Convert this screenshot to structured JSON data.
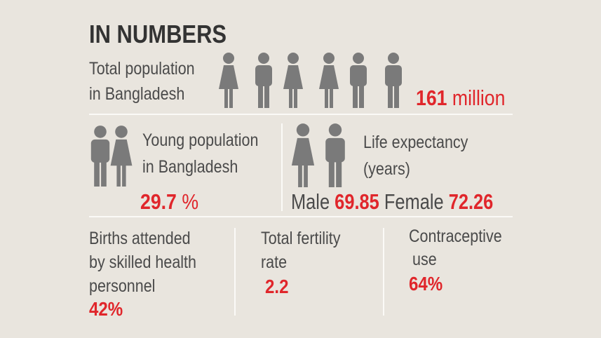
{
  "header": {
    "title": "IN NUMBERS"
  },
  "total_population": {
    "label": [
      "Total population",
      "in Bangladesh"
    ],
    "value": "161",
    "unit": "million"
  },
  "young_population": {
    "label": [
      "Young population",
      "in Bangladesh"
    ],
    "value": "29.7",
    "unit": "%"
  },
  "life_expectancy": {
    "label": [
      "Life expectancy",
      "(years)"
    ],
    "male_label": "Male",
    "male_value": "69.85",
    "female_label": "Female",
    "female_value": "72.26"
  },
  "births_attended": {
    "label": [
      "Births attended",
      "by skilled health",
      "personnel"
    ],
    "value": "42%"
  },
  "fertility": {
    "label": [
      "Total fertility",
      "rate"
    ],
    "value": "2.2"
  },
  "contraceptive": {
    "label": [
      "Contraceptive",
      "use"
    ],
    "value": "64%"
  }
}
